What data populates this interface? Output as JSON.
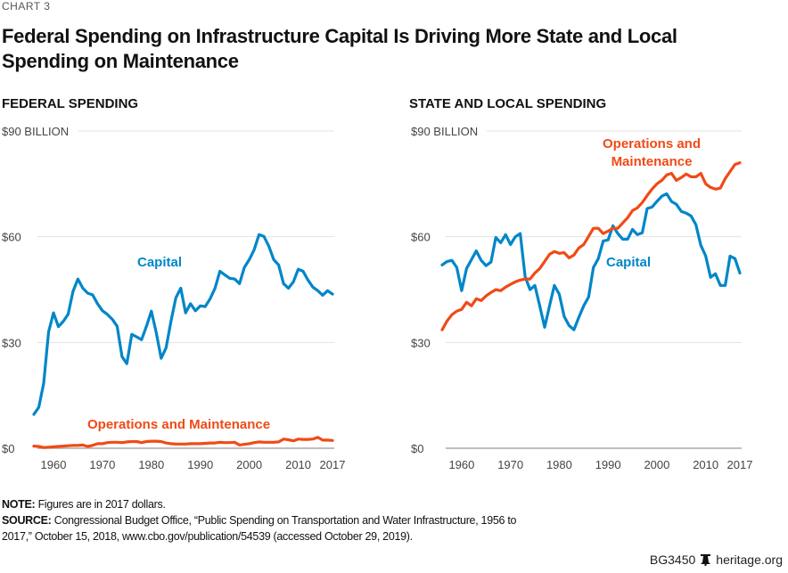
{
  "header": {
    "chart_number": "CHART 3",
    "title": "Federal Spending on Infrastructure Capital Is Driving More State and Local Spending on Maintenance"
  },
  "colors": {
    "capital": "#0086c8",
    "operations": "#f04a16",
    "grid": "#e3e3e3",
    "axis": "#aaaaaa",
    "tick_text": "#444444"
  },
  "chart_data": [
    {
      "type": "line",
      "title": "FEDERAL SPENDING",
      "xlabel": "",
      "ylabel": "$ billion",
      "y_unit_label": "$90 BILLION",
      "ylim": [
        0,
        90
      ],
      "xlim": [
        1956,
        2017
      ],
      "yticks": [
        0,
        30,
        60,
        90
      ],
      "ytick_labels": [
        "$0",
        "$30",
        "$60",
        "$90"
      ],
      "xticks": [
        1960,
        1970,
        1980,
        1990,
        2000,
        2010,
        2017
      ],
      "xtick_labels": [
        "1960",
        "1970",
        "1980",
        "1990",
        "2000",
        "2010",
        "2017"
      ],
      "grid": true,
      "legend": "inline-labels",
      "x": [
        1956,
        1957,
        1958,
        1959,
        1960,
        1961,
        1962,
        1963,
        1964,
        1965,
        1966,
        1967,
        1968,
        1969,
        1970,
        1971,
        1972,
        1973,
        1974,
        1975,
        1976,
        1977,
        1978,
        1979,
        1980,
        1981,
        1982,
        1983,
        1984,
        1985,
        1986,
        1987,
        1988,
        1989,
        1990,
        1991,
        1992,
        1993,
        1994,
        1995,
        1996,
        1997,
        1998,
        1999,
        2000,
        2001,
        2002,
        2003,
        2004,
        2005,
        2006,
        2007,
        2008,
        2009,
        2010,
        2011,
        2012,
        2013,
        2014,
        2015,
        2016,
        2017
      ],
      "series": [
        {
          "name": "Capital",
          "label": "Capital",
          "values": [
            9.6,
            11.6,
            18.4,
            33.0,
            38.4,
            34.5,
            36.0,
            38.0,
            44.5,
            48.0,
            45.4,
            44.0,
            43.5,
            41.0,
            39.0,
            38.0,
            36.6,
            34.6,
            26.0,
            24.0,
            32.3,
            31.6,
            30.8,
            34.6,
            38.9,
            32.8,
            25.5,
            28.5,
            36.0,
            42.7,
            45.4,
            38.4,
            41.0,
            39.0,
            40.4,
            40.2,
            42.4,
            45.4,
            50.2,
            49.2,
            48.2,
            48.0,
            46.7,
            51.3,
            53.5,
            56.3,
            60.6,
            60.1,
            57.3,
            53.5,
            52.0,
            46.7,
            45.4,
            47.2,
            50.8,
            50.2,
            47.7,
            45.7,
            44.7,
            43.4,
            44.7,
            43.7
          ]
        },
        {
          "name": "Operations and Maintenance",
          "label": "Operations and Maintenance",
          "values": [
            0.6,
            0.5,
            0.2,
            0.3,
            0.4,
            0.5,
            0.6,
            0.7,
            0.8,
            0.8,
            0.9,
            0.5,
            0.8,
            1.3,
            1.3,
            1.6,
            1.7,
            1.7,
            1.6,
            1.8,
            1.9,
            1.9,
            1.6,
            1.9,
            2.0,
            2.0,
            1.9,
            1.5,
            1.3,
            1.2,
            1.2,
            1.2,
            1.3,
            1.3,
            1.3,
            1.4,
            1.5,
            1.5,
            1.7,
            1.6,
            1.6,
            1.7,
            0.9,
            1.1,
            1.3,
            1.6,
            1.8,
            1.7,
            1.7,
            1.7,
            1.8,
            2.6,
            2.4,
            2.1,
            2.6,
            2.5,
            2.5,
            2.6,
            3.1,
            2.3,
            2.3,
            2.2
          ]
        }
      ]
    },
    {
      "type": "line",
      "title": "STATE AND LOCAL SPENDING",
      "xlabel": "",
      "ylabel": "$ billion",
      "y_unit_label": "$90 BILLION",
      "ylim": [
        0,
        90
      ],
      "xlim": [
        1956,
        2017
      ],
      "yticks": [
        0,
        30,
        60,
        90
      ],
      "ytick_labels": [
        "$0",
        "$30",
        "$60",
        "$90"
      ],
      "xticks": [
        1960,
        1970,
        1980,
        1990,
        2000,
        2010,
        2017
      ],
      "xtick_labels": [
        "1960",
        "1970",
        "1980",
        "1990",
        "2000",
        "2010",
        "2017"
      ],
      "grid": true,
      "legend": "inline-labels",
      "x": [
        1956,
        1957,
        1958,
        1959,
        1960,
        1961,
        1962,
        1963,
        1964,
        1965,
        1966,
        1967,
        1968,
        1969,
        1970,
        1971,
        1972,
        1973,
        1974,
        1975,
        1976,
        1977,
        1978,
        1979,
        1980,
        1981,
        1982,
        1983,
        1984,
        1985,
        1986,
        1987,
        1988,
        1989,
        1990,
        1991,
        1992,
        1993,
        1994,
        1995,
        1996,
        1997,
        1998,
        1999,
        2000,
        2001,
        2002,
        2003,
        2004,
        2005,
        2006,
        2007,
        2008,
        2009,
        2010,
        2011,
        2012,
        2013,
        2014,
        2015,
        2016,
        2017
      ],
      "series": [
        {
          "name": "Capital",
          "label": "Capital",
          "values": [
            52.0,
            53.0,
            53.3,
            51.3,
            44.7,
            51.0,
            53.5,
            56.0,
            53.3,
            51.8,
            52.8,
            59.8,
            58.3,
            60.6,
            57.8,
            60.0,
            60.9,
            48.7,
            45.0,
            46.2,
            40.4,
            34.3,
            40.4,
            46.2,
            43.7,
            37.4,
            34.8,
            33.6,
            37.1,
            40.4,
            42.9,
            51.3,
            53.8,
            58.8,
            59.1,
            63.1,
            60.9,
            59.3,
            59.3,
            62.1,
            60.6,
            61.1,
            68.0,
            68.4,
            70.0,
            71.5,
            72.2,
            70.0,
            69.2,
            67.2,
            66.7,
            65.9,
            63.4,
            57.6,
            54.5,
            48.5,
            49.5,
            46.2,
            46.2,
            54.5,
            53.8,
            49.7
          ]
        },
        {
          "name": "Operations and Maintenance",
          "label": "Operations and\nMaintenance",
          "values": [
            33.6,
            36.1,
            37.9,
            38.9,
            39.4,
            41.4,
            40.4,
            42.4,
            41.9,
            43.2,
            44.2,
            45.0,
            44.7,
            45.7,
            46.5,
            47.2,
            47.7,
            48.0,
            48.0,
            49.7,
            51.0,
            53.0,
            55.0,
            55.8,
            55.3,
            55.5,
            54.0,
            54.8,
            56.8,
            57.8,
            60.1,
            62.4,
            62.4,
            60.9,
            61.6,
            62.4,
            62.4,
            63.9,
            65.4,
            67.4,
            68.2,
            69.7,
            71.7,
            73.5,
            75.0,
            76.0,
            77.5,
            78.0,
            76.0,
            76.8,
            77.8,
            77.0,
            77.0,
            78.0,
            75.0,
            74.0,
            73.5,
            73.8,
            76.5,
            78.5,
            80.5,
            81.0
          ]
        }
      ]
    }
  ],
  "notes": {
    "note_label": "NOTE:",
    "note_text": " Figures are in 2017 dollars.",
    "source_label": "SOURCE:",
    "source_text": " Congressional Budget Office, “Public Spending on Transportation and Water Infrastructure, 1956 to 2017,” October 15, 2018, www.cbo.gov/publication/54539 (accessed October 29, 2019)."
  },
  "footer": {
    "code": "BG3450",
    "icon": "liberty-bell-icon",
    "site": "heritage.org"
  }
}
